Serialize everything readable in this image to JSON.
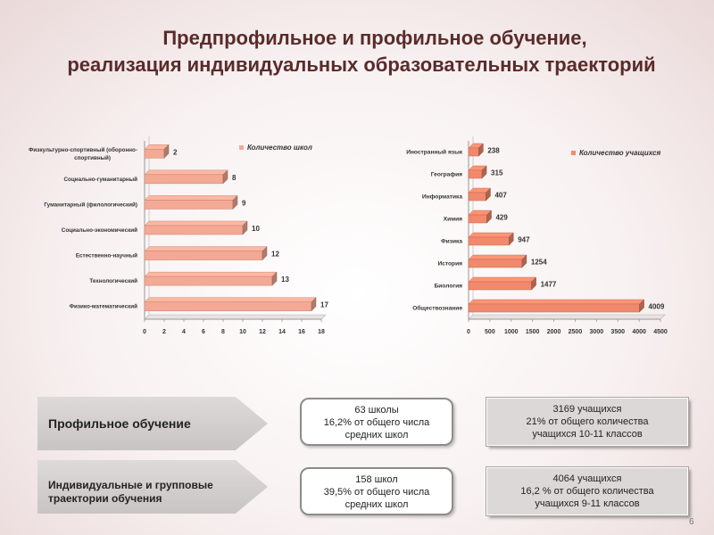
{
  "title": {
    "line1": "Предпрофильное и профильное обучение,",
    "line2": "реализация индивидуальных образовательных траекторий"
  },
  "chart_data": [
    {
      "type": "bar",
      "orientation": "horizontal",
      "legend": "Количество школ",
      "categories": [
        "Физкультурно-спортивный (оборонно-спортивный)",
        "Социально-гуманитарный",
        "Гуманитарный (филологический)",
        "Социально-экономический",
        "Естественно-научный",
        "Технологический",
        "Физико-математический"
      ],
      "values": [
        2,
        8,
        9,
        10,
        12,
        13,
        17
      ],
      "xlim": [
        0,
        18
      ],
      "xticks": [
        0,
        2,
        4,
        6,
        8,
        10,
        12,
        14,
        16,
        18
      ],
      "color": "#f4a995"
    },
    {
      "type": "bar",
      "orientation": "horizontal",
      "legend": "Количество учащихся",
      "categories": [
        "Иностранный язык",
        "География",
        "Информатика",
        "Химия",
        "Физика",
        "История",
        "Биология",
        "Обществознание"
      ],
      "values": [
        238,
        315,
        407,
        429,
        947,
        1254,
        1477,
        4009
      ],
      "xlim": [
        0,
        4500
      ],
      "xticks": [
        0,
        500,
        1000,
        1500,
        2000,
        2500,
        3000,
        3500,
        4000,
        4500
      ],
      "color": "#f2896c"
    }
  ],
  "rows": [
    {
      "label": "Профильное обучение",
      "schools": [
        "63 школы",
        "16,2%  от общего числа",
        "средних школ"
      ],
      "students": [
        "3169 учащихся",
        "21%  от общего количества",
        "учащихся 10-11 классов"
      ]
    },
    {
      "label_lines": [
        "Индивидуальные и групповые",
        "траектории обучения"
      ],
      "schools": [
        "158 школ",
        "39,5%  от общего числа",
        "средних школ"
      ],
      "students": [
        "4064 учащихся",
        "16,2 %  от общего количества",
        "учащихся 9-11 классов"
      ]
    }
  ],
  "page_number": "6"
}
